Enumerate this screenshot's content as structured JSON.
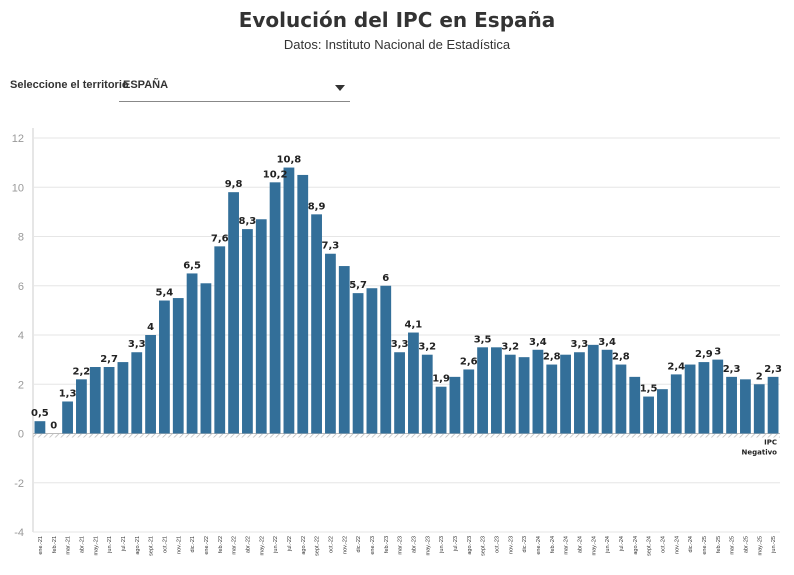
{
  "page": {
    "title": "Evolución del IPC en España",
    "subtitle": "Datos: Instituto Nacional de Estadística",
    "selector_label": "Seleccione el territorio",
    "selector_value": "ESPAÑA"
  },
  "colors": {
    "bar": "#336f99",
    "grid": "#e6e6e6",
    "hatch": "#bbbbbb"
  },
  "chart_data": {
    "type": "bar",
    "title": "Evolución del IPC en España",
    "subtitle": "Datos: Instituto Nacional de Estadística",
    "ylim": [
      -4,
      12
    ],
    "yticks": [
      -4,
      -2,
      0,
      2,
      4,
      6,
      8,
      10,
      12
    ],
    "grid": true,
    "legend": [
      "IPC",
      "Negativo"
    ],
    "legend_position": "right",
    "categories": [
      "ene.-21",
      "feb.-21",
      "mar.-21",
      "abr.-21",
      "may.-21",
      "jun.-21",
      "jul.-21",
      "ago.-21",
      "sept.-21",
      "oct.-21",
      "nov.-21",
      "dic.-21",
      "ene.-22",
      "feb.-22",
      "mar.-22",
      "abr.-22",
      "may.-22",
      "jun.-22",
      "jul.-22",
      "ago.-22",
      "sept.-22",
      "oct.-22",
      "nov.-22",
      "dic.-22",
      "ene.-23",
      "feb.-23",
      "mar.-23",
      "abr.-23",
      "may.-23",
      "jun.-23",
      "jul.-23",
      "ago.-23",
      "sept.-23",
      "oct.-23",
      "nov.-23",
      "dic.-23",
      "ene.-24",
      "feb.-24",
      "mar.-24",
      "abr.-24",
      "may.-24",
      "jun.-24",
      "jul.-24",
      "ago.-24",
      "sept.-24",
      "oct.-24",
      "nov.-24",
      "dic.-24",
      "ene.-25",
      "feb.-25",
      "mar.-25",
      "abr.-25",
      "may.-25",
      "jun.-25"
    ],
    "values": [
      0.5,
      0,
      1.3,
      2.2,
      2.7,
      2.7,
      2.9,
      3.3,
      4.0,
      5.4,
      5.5,
      6.5,
      6.1,
      7.6,
      9.8,
      8.3,
      8.7,
      10.2,
      10.8,
      10.5,
      8.9,
      7.3,
      6.8,
      5.7,
      5.9,
      6.0,
      3.3,
      4.1,
      3.2,
      1.9,
      2.3,
      2.6,
      3.5,
      3.5,
      3.2,
      3.1,
      3.4,
      2.8,
      3.2,
      3.3,
      3.6,
      3.4,
      2.8,
      2.3,
      1.5,
      1.8,
      2.4,
      2.8,
      2.9,
      3.0,
      2.3,
      2.2,
      2.0,
      2.3
    ],
    "data_labels": [
      {
        "i": 0,
        "text": "0,5"
      },
      {
        "i": 1,
        "text": "0"
      },
      {
        "i": 2,
        "text": "1,3"
      },
      {
        "i": 3,
        "text": "2,2"
      },
      {
        "i": 5,
        "text": "2,7"
      },
      {
        "i": 7,
        "text": "3,3"
      },
      {
        "i": 8,
        "text": "4"
      },
      {
        "i": 9,
        "text": "5,4"
      },
      {
        "i": 11,
        "text": "6,5"
      },
      {
        "i": 13,
        "text": "7,6"
      },
      {
        "i": 14,
        "text": "9,8"
      },
      {
        "i": 15,
        "text": "8,3"
      },
      {
        "i": 17,
        "text": "10,2"
      },
      {
        "i": 18,
        "text": "10,8"
      },
      {
        "i": 20,
        "text": "8,9"
      },
      {
        "i": 21,
        "text": "7,3"
      },
      {
        "i": 23,
        "text": "5,7"
      },
      {
        "i": 25,
        "text": "6"
      },
      {
        "i": 26,
        "text": "3,3"
      },
      {
        "i": 27,
        "text": "4,1"
      },
      {
        "i": 28,
        "text": "3,2"
      },
      {
        "i": 29,
        "text": "1,9"
      },
      {
        "i": 31,
        "text": "2,6"
      },
      {
        "i": 32,
        "text": "3,5"
      },
      {
        "i": 34,
        "text": "3,2"
      },
      {
        "i": 36,
        "text": "3,4"
      },
      {
        "i": 37,
        "text": "2,8"
      },
      {
        "i": 39,
        "text": "3,3"
      },
      {
        "i": 41,
        "text": "3,4"
      },
      {
        "i": 42,
        "text": "2,8"
      },
      {
        "i": 44,
        "text": "1,5"
      },
      {
        "i": 46,
        "text": "2,4"
      },
      {
        "i": 48,
        "text": "2,9"
      },
      {
        "i": 49,
        "text": "3"
      },
      {
        "i": 50,
        "text": "2,3"
      },
      {
        "i": 52,
        "text": "2"
      },
      {
        "i": 53,
        "text": "2,3"
      }
    ]
  }
}
